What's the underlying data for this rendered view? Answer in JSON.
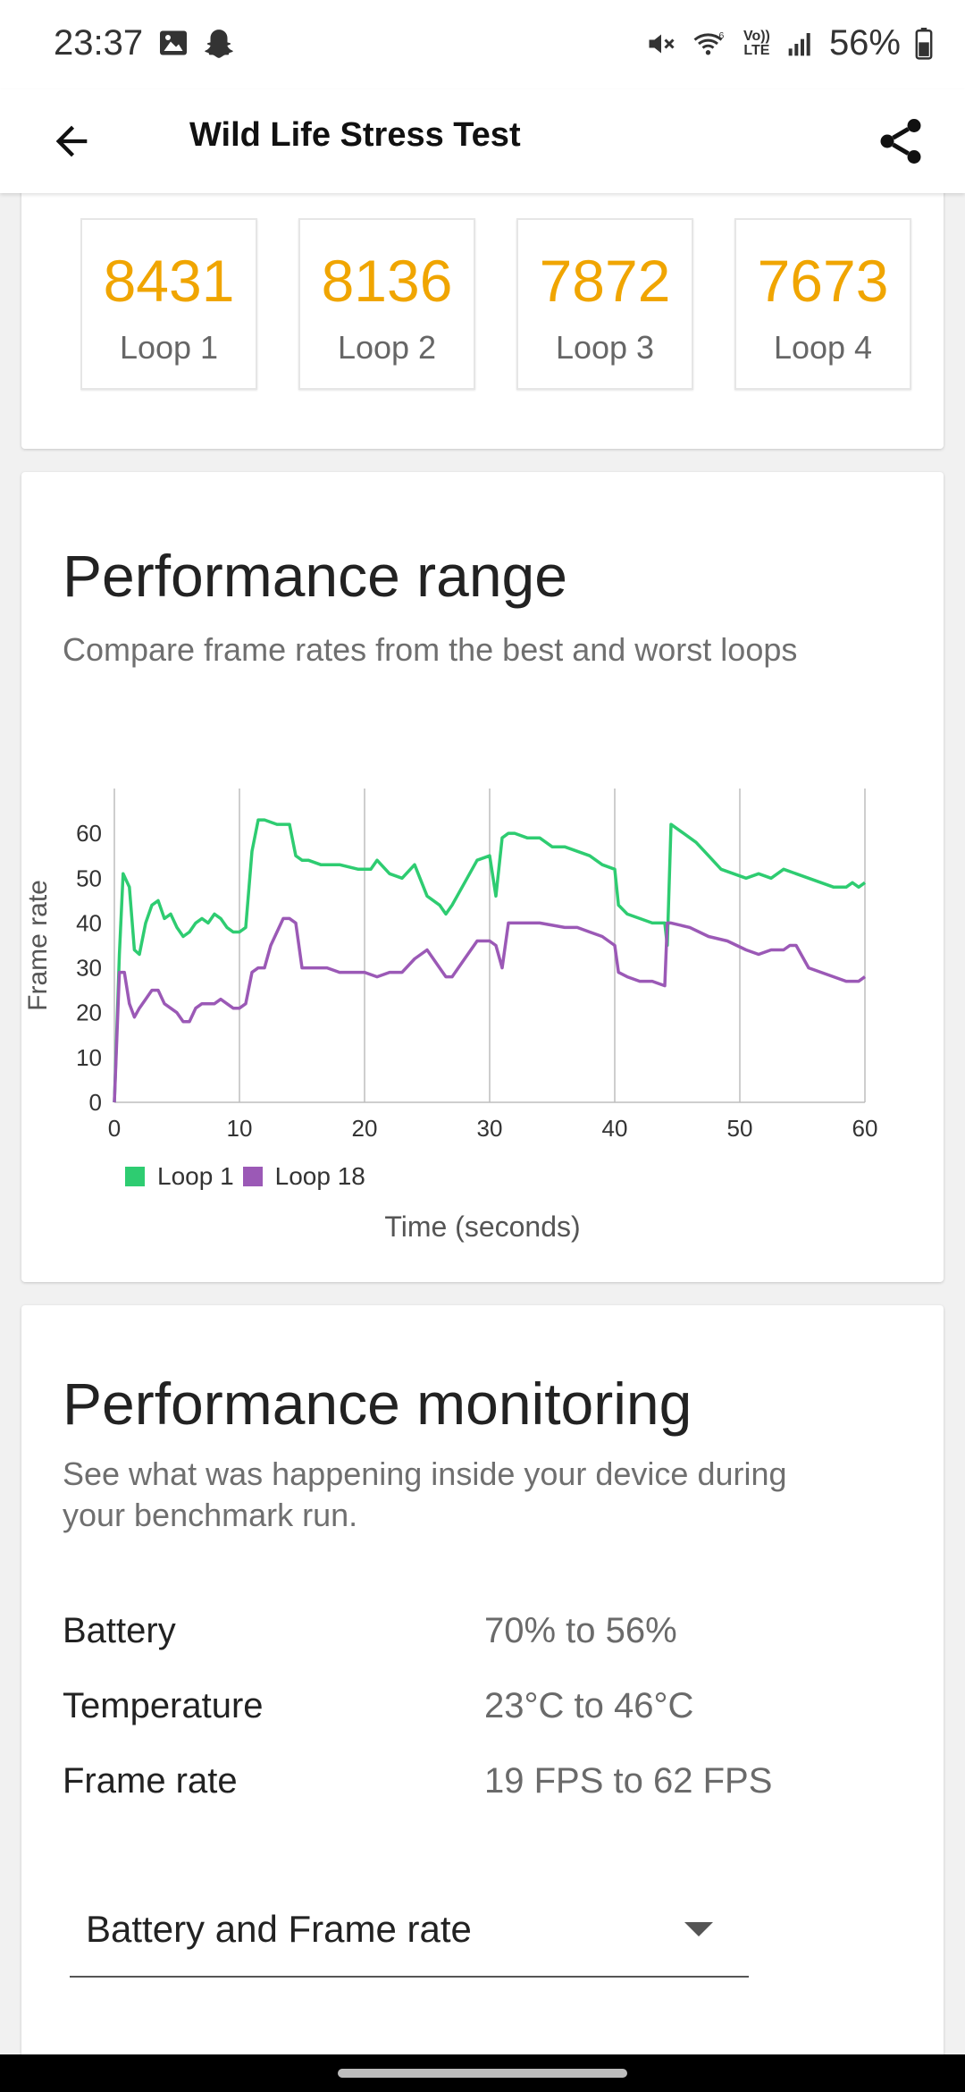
{
  "status": {
    "time": "23:37",
    "battery": "56%",
    "icons_left": [
      "gallery-icon",
      "snapchat-icon"
    ],
    "icons_right": [
      "mute-icon",
      "wifi-icon",
      "volte-icon",
      "signal-icon",
      "battery-icon"
    ],
    "volte_text": "Vo)) LTE"
  },
  "app_bar": {
    "title": "Wild Life Stress Test"
  },
  "loops": [
    {
      "score": "8431",
      "label": "Loop 1"
    },
    {
      "score": "8136",
      "label": "Loop 2"
    },
    {
      "score": "7872",
      "label": "Loop 3"
    },
    {
      "score": "7673",
      "label": "Loop 4"
    }
  ],
  "range": {
    "title": "Performance range",
    "subtitle": "Compare frame rates from the best and worst loops"
  },
  "chart_data": {
    "type": "line",
    "xlabel": "Time (seconds)",
    "ylabel": "Frame rate",
    "xlim": [
      0,
      60
    ],
    "ylim": [
      0,
      70
    ],
    "x_ticks": [
      "0",
      "10",
      "20",
      "30",
      "40",
      "50",
      "60"
    ],
    "y_ticks": [
      "0",
      "10",
      "20",
      "30",
      "40",
      "50",
      "60"
    ],
    "grid": "vertical",
    "legend_position": "bottom-left",
    "series": [
      {
        "name": "Loop 1",
        "color": "#2ecc71",
        "x": [
          0,
          0.4,
          0.7,
          1.2,
          1.6,
          2.0,
          2.5,
          3.0,
          3.5,
          4.0,
          4.5,
          5.0,
          5.5,
          6.0,
          6.5,
          7.0,
          7.5,
          8.0,
          8.5,
          9.0,
          9.5,
          10.0,
          10.5,
          11.0,
          11.5,
          12.0,
          13.0,
          14.0,
          14.5,
          15.0,
          15.5,
          16.5,
          18.0,
          19.5,
          20.5,
          21.0,
          22.0,
          23.0,
          24.0,
          25.0,
          26.0,
          26.5,
          27.0,
          28.0,
          29.0,
          30.0,
          30.5,
          31.0,
          31.5,
          32.0,
          33.0,
          34.0,
          35.0,
          36.0,
          37.0,
          38.0,
          39.0,
          40.0,
          40.3,
          41.0,
          42.0,
          43.0,
          44.0,
          44.2,
          44.5,
          45.5,
          46.5,
          47.5,
          48.5,
          49.5,
          50.5,
          51.5,
          52.5,
          53.5,
          54.5,
          55.5,
          56.5,
          57.5,
          58.5,
          59.0,
          59.5,
          60.0
        ],
        "values": [
          0,
          33,
          51,
          48,
          34,
          33,
          40,
          44,
          45,
          41,
          42,
          39,
          37,
          38,
          40,
          41,
          40,
          42,
          41,
          39,
          38,
          38,
          39,
          56,
          63,
          63,
          62,
          62,
          55,
          54,
          54,
          53,
          53,
          52,
          52,
          54,
          51,
          50,
          53,
          46,
          44,
          42,
          44,
          49,
          54,
          55,
          46,
          59,
          60,
          60,
          59,
          59,
          57,
          57,
          56,
          55,
          53,
          52,
          44,
          42,
          41,
          40,
          40,
          35,
          62,
          60,
          58,
          55,
          52,
          51,
          50,
          51,
          50,
          52,
          51,
          50,
          49,
          48,
          48,
          49,
          48,
          49
        ]
      },
      {
        "name": "Loop 18",
        "color": "#9b59b6",
        "x": [
          0,
          0.4,
          0.8,
          1.2,
          1.6,
          2.0,
          2.5,
          3.0,
          3.5,
          4.0,
          4.5,
          5.0,
          5.5,
          6.0,
          6.5,
          7.0,
          7.5,
          8.0,
          8.5,
          9.0,
          9.5,
          10.0,
          10.5,
          11.0,
          11.5,
          12.0,
          12.5,
          13.5,
          14.0,
          14.5,
          15.0,
          16.0,
          17.0,
          18.0,
          19.0,
          20.0,
          21.0,
          22.0,
          23.0,
          24.0,
          25.0,
          26.0,
          26.5,
          27.0,
          28.0,
          29.0,
          30.0,
          30.5,
          31.0,
          31.5,
          32.0,
          34.0,
          36.0,
          37.0,
          38.0,
          39.0,
          40.0,
          40.3,
          41.0,
          42.0,
          43.0,
          44.0,
          44.2,
          44.5,
          46.0,
          47.5,
          49.0,
          50.5,
          51.5,
          52.5,
          53.5,
          54.0,
          54.5,
          55.5,
          56.5,
          57.5,
          58.5,
          59.0,
          59.5,
          60.0
        ],
        "values": [
          0,
          29,
          29,
          22,
          19,
          21,
          23,
          25,
          25,
          22,
          21,
          20,
          18,
          18,
          21,
          22,
          22,
          22,
          23,
          22,
          21,
          21,
          22,
          29,
          30,
          30,
          35,
          41,
          41,
          40,
          30,
          30,
          30,
          29,
          29,
          29,
          28,
          29,
          29,
          32,
          34,
          30,
          28,
          28,
          32,
          36,
          36,
          35,
          30,
          40,
          40,
          40,
          39,
          39,
          38,
          37,
          35,
          29,
          28,
          27,
          27,
          26,
          40,
          40,
          39,
          37,
          36,
          34,
          33,
          34,
          34,
          35,
          35,
          30,
          29,
          28,
          27,
          27,
          27,
          28
        ]
      }
    ]
  },
  "monitoring": {
    "title": "Performance monitoring",
    "subtitle_line1": "See what was happening inside your device during",
    "subtitle_line2": "your benchmark run.",
    "rows": [
      {
        "label": "Battery",
        "value": "70% to 56%"
      },
      {
        "label": "Temperature",
        "value": "23°C to 46°C"
      },
      {
        "label": "Frame rate",
        "value": "19 FPS to 62 FPS"
      }
    ],
    "dropdown_value": "Battery and Frame rate"
  }
}
